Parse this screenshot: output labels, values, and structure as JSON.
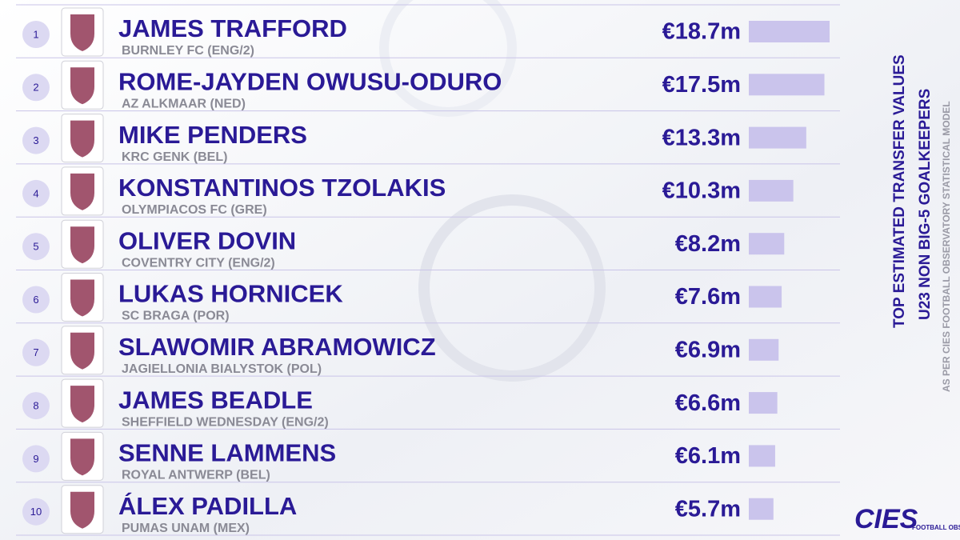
{
  "chart_data": {
    "type": "bar",
    "title": "TOP ESTIMATED TRANSFER VALUES",
    "subtitle": "U23 NON BIG-5 GOALKEEPERS",
    "note": "AS PER CIES FOOTBALL OBSERVATORY STATISTICAL MODEL",
    "logo": "CIES",
    "logo_subtitle": "FOOTBALL OBSERVATORY",
    "ranks": [
      "1",
      "2",
      "3",
      "4",
      "5",
      "6",
      "7",
      "8",
      "9",
      "10"
    ],
    "categories": [
      "JAMES TRAFFORD",
      "ROME-JAYDEN OWUSU-ODURO",
      "MIKE PENDERS",
      "KONSTANTINOS TZOLAKIS",
      "OLIVER DOVIN",
      "LUKAS HORNICEK",
      "SLAWOMIR ABRAMOWICZ",
      "JAMES BEADLE",
      "SENNE LAMMENS",
      "ÁLEX PADILLA"
    ],
    "clubs": [
      "BURNLEY FC (ENG/2)",
      "AZ ALKMAAR (NED)",
      "KRC GENK (BEL)",
      "OLYMPIACOS FC (GRE)",
      "COVENTRY CITY (ENG/2)",
      "SC BRAGA (POR)",
      "JAGIELLONIA BIALYSTOK (POL)",
      "SHEFFIELD WEDNESDAY (ENG/2)",
      "ROYAL ANTWERP (BEL)",
      "PUMAS UNAM (MEX)"
    ],
    "values": [
      18.7,
      17.5,
      13.3,
      10.3,
      8.2,
      7.6,
      6.9,
      6.6,
      6.1,
      5.7
    ],
    "value_labels": [
      "€18.7m",
      "€17.5m",
      "€13.3m",
      "€10.3m",
      "€8.2m",
      "€7.6m",
      "€6.9m",
      "€6.6m",
      "€6.1m",
      "€5.7m"
    ],
    "color": "#cac4ec"
  }
}
